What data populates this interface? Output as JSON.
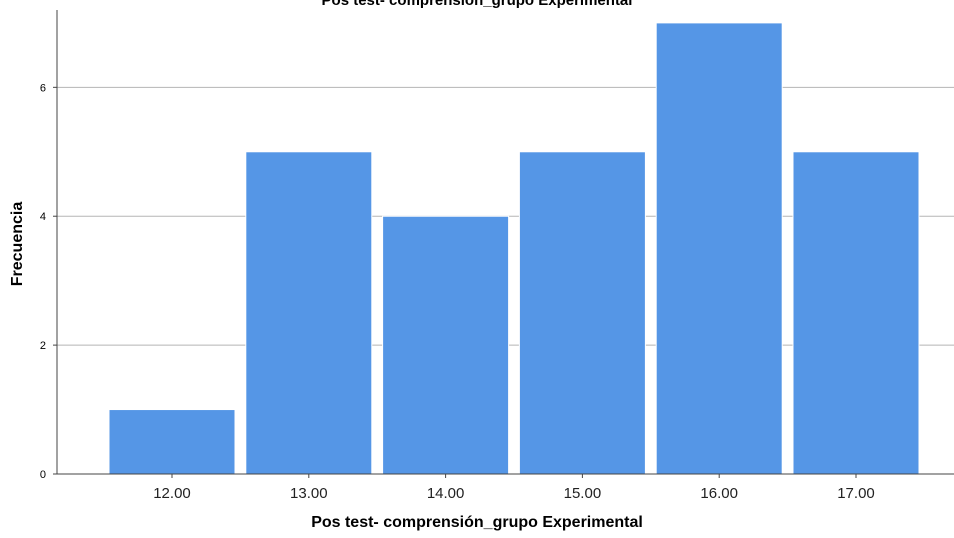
{
  "chart_data": {
    "type": "bar",
    "title": "Pos test- comprensión_grupo Experimental",
    "xlabel": "Pos test- comprensión_grupo Experimental",
    "ylabel": "Frecuencia",
    "categories": [
      "12.00",
      "13.00",
      "14.00",
      "15.00",
      "16.00",
      "17.00"
    ],
    "values": [
      1,
      5,
      4,
      5,
      7,
      5
    ],
    "ylim": [
      0,
      7.2
    ],
    "yticks": [
      0,
      2,
      4,
      6
    ],
    "grid": true,
    "bar_color": "#5596e6",
    "bar_edge_color": "#ffffff"
  }
}
